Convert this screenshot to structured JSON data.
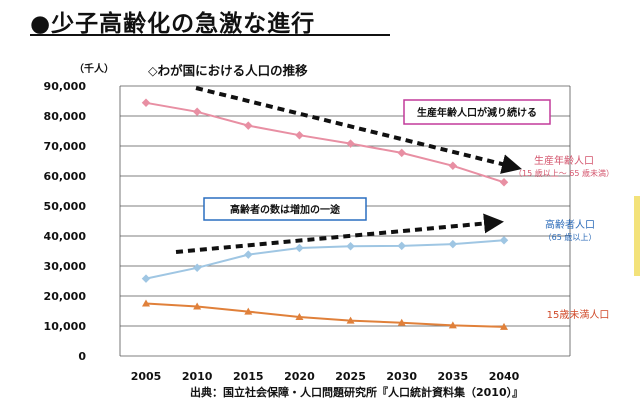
{
  "title": "●少子高齢化の急激な進行",
  "chart_data": {
    "type": "line",
    "title": "◇わが国における人口の推移",
    "unit": "（千人）",
    "x": [
      "2005",
      "2010",
      "2015",
      "2020",
      "2025",
      "2030",
      "2035",
      "2040"
    ],
    "ylim": [
      0,
      90000
    ],
    "yticks": [
      "0",
      "10,000",
      "20,000",
      "30,000",
      "40,000",
      "50,000",
      "60,000",
      "70,000",
      "80,000",
      "90,000"
    ],
    "grid": true,
    "series": [
      {
        "name": "生産年齢人口",
        "sub": "（15 歳以上～ 65 歳未満）",
        "color": "#e88fa3",
        "values": [
          84400,
          81400,
          76800,
          73600,
          70800,
          67700,
          63400,
          57900
        ]
      },
      {
        "name": "高齢者人口",
        "sub": "（65 歳以上）",
        "color": "#9fc6e3",
        "values": [
          25800,
          29400,
          33800,
          36000,
          36600,
          36700,
          37300,
          38600
        ]
      },
      {
        "name": "15歳未満人口",
        "sub": "",
        "color": "#e0803a",
        "values": [
          17500,
          16500,
          14800,
          13000,
          11800,
          11100,
          10200,
          9700
        ]
      }
    ],
    "callouts": [
      {
        "text": "生産年齢人口が減り続ける",
        "border": "#c23a9a"
      },
      {
        "text": "高齢者の数は増加の一途",
        "border": "#2a6fc0"
      }
    ],
    "source": "出典：国立社会保障・人口問題研究所『人口統計資料集（2010）』"
  }
}
